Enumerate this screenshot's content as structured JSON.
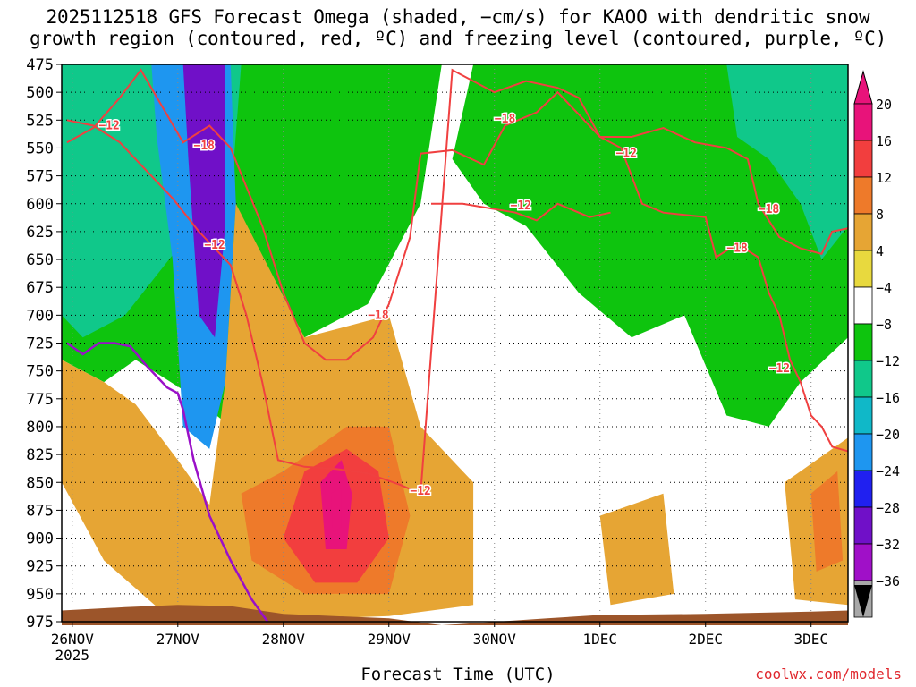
{
  "chart_data": {
    "type": "heatmap",
    "title_line1": "2025112518 GFS Forecast Omega (shaded, −cm/s) for KAOO with dendritic snow",
    "title_line2": "growth region (contoured, red, ºC) and freezing level (contoured, purple, ºC)",
    "xlabel": "Forecast Time (UTC)",
    "credit": "coolwx.com/models",
    "y_axis": {
      "labels": [
        "475",
        "500",
        "525",
        "550",
        "575",
        "600",
        "625",
        "650",
        "675",
        "700",
        "725",
        "750",
        "775",
        "800",
        "825",
        "850",
        "875",
        "900",
        "925",
        "950",
        "975"
      ],
      "range": [
        475,
        975
      ]
    },
    "x_axis": {
      "labels": [
        "26NOV",
        "27NOV",
        "28NOV",
        "29NOV",
        "30NOV",
        "1DEC",
        "2DEC",
        "3DEC"
      ],
      "year_label": "2025",
      "range_days": [
        -0.1,
        7.35
      ]
    },
    "colorbar": {
      "labels": [
        "20",
        "16",
        "12",
        "8",
        "4",
        "−4",
        "−8",
        "−12",
        "−16",
        "−20",
        "−24",
        "−28",
        "−32",
        "−36"
      ],
      "colors": [
        "#e8137a",
        "#f23e3e",
        "#ee7a2a",
        "#e6a534",
        "#e8d93e",
        "#ffffff",
        "#0ec40e",
        "#10c88a",
        "#10b8c8",
        "#1e96f0",
        "#2020f0",
        "#7010c8",
        "#a010c8",
        "#a8a8a8"
      ]
    },
    "contour_labels_red": [
      "−12",
      "−18",
      "−12",
      "−18",
      "−18",
      "−12",
      "−12",
      "−18",
      "−12",
      "−18",
      "−12",
      "−12"
    ],
    "red_contours": [
      {
        "name": "minus12-contour",
        "points": [
          [
            -0.05,
            525
          ],
          [
            0.2,
            530
          ],
          [
            0.45,
            545
          ],
          [
            0.7,
            570
          ],
          [
            0.95,
            595
          ],
          [
            1.2,
            625
          ],
          [
            1.5,
            655
          ],
          [
            1.65,
            700
          ],
          [
            1.8,
            760
          ],
          [
            1.95,
            830
          ],
          [
            2.2,
            836
          ],
          [
            2.5,
            838
          ],
          [
            2.8,
            842
          ],
          [
            3.1,
            852
          ],
          [
            3.3,
            860
          ],
          [
            3.6,
            480
          ],
          [
            4.0,
            500
          ],
          [
            4.3,
            490
          ],
          [
            4.6,
            496
          ],
          [
            4.8,
            505
          ],
          [
            5.0,
            540
          ],
          [
            5.2,
            550
          ],
          [
            5.4,
            600
          ],
          [
            5.6,
            608
          ],
          [
            6.0,
            612
          ],
          [
            6.1,
            648
          ],
          [
            6.3,
            636
          ],
          [
            6.5,
            648
          ],
          [
            6.6,
            680
          ],
          [
            6.7,
            700
          ],
          [
            6.8,
            740
          ],
          [
            6.9,
            760
          ],
          [
            7.0,
            790
          ],
          [
            7.1,
            800
          ],
          [
            7.2,
            818
          ],
          [
            7.35,
            822
          ]
        ]
      },
      {
        "name": "minus18-contour",
        "points": [
          [
            -0.05,
            545
          ],
          [
            0.2,
            532
          ],
          [
            0.45,
            505
          ],
          [
            0.65,
            480
          ],
          [
            1.05,
            545
          ],
          [
            1.3,
            530
          ],
          [
            1.5,
            550
          ],
          [
            1.8,
            620
          ],
          [
            2.0,
            680
          ],
          [
            2.2,
            725
          ],
          [
            2.4,
            740
          ],
          [
            2.6,
            740
          ],
          [
            2.85,
            720
          ],
          [
            3.0,
            690
          ],
          [
            3.2,
            630
          ],
          [
            3.3,
            555
          ],
          [
            3.6,
            552
          ],
          [
            3.9,
            565
          ],
          [
            4.1,
            530
          ],
          [
            4.4,
            518
          ],
          [
            4.6,
            500
          ],
          [
            4.8,
            520
          ],
          [
            5.0,
            540
          ],
          [
            5.3,
            540
          ],
          [
            5.6,
            532
          ],
          [
            5.9,
            545
          ],
          [
            6.2,
            550
          ],
          [
            6.4,
            560
          ],
          [
            6.5,
            600
          ],
          [
            6.7,
            630
          ],
          [
            6.9,
            640
          ],
          [
            7.1,
            645
          ],
          [
            7.2,
            625
          ],
          [
            7.35,
            622
          ]
        ]
      },
      {
        "name": "minus12-loop-contour",
        "points": [
          [
            3.4,
            600
          ],
          [
            3.7,
            600
          ],
          [
            4.2,
            608
          ],
          [
            4.4,
            615
          ],
          [
            4.6,
            600
          ],
          [
            4.9,
            612
          ],
          [
            5.1,
            608
          ]
        ]
      }
    ],
    "purple_contours": [
      {
        "name": "freezing-level-contour",
        "points": [
          [
            -0.05,
            725
          ],
          [
            0.1,
            735
          ],
          [
            0.25,
            725
          ],
          [
            0.4,
            725
          ],
          [
            0.55,
            728
          ],
          [
            0.7,
            745
          ],
          [
            0.9,
            765
          ],
          [
            1.0,
            770
          ],
          [
            1.05,
            785
          ],
          [
            1.15,
            830
          ],
          [
            1.3,
            880
          ],
          [
            1.5,
            920
          ],
          [
            1.7,
            955
          ],
          [
            1.85,
            975
          ]
        ]
      }
    ],
    "shaded_regions": [
      {
        "name": "upper-left-cyan",
        "value": -12
      },
      {
        "name": "mid-green-band",
        "value": -8
      },
      {
        "name": "day27-deep-core",
        "value": -28
      },
      {
        "name": "lower-yellow-lift",
        "value": 6
      },
      {
        "name": "day28-orange-core",
        "value": 14
      },
      {
        "name": "day28-pink-max",
        "value": 20
      }
    ]
  }
}
